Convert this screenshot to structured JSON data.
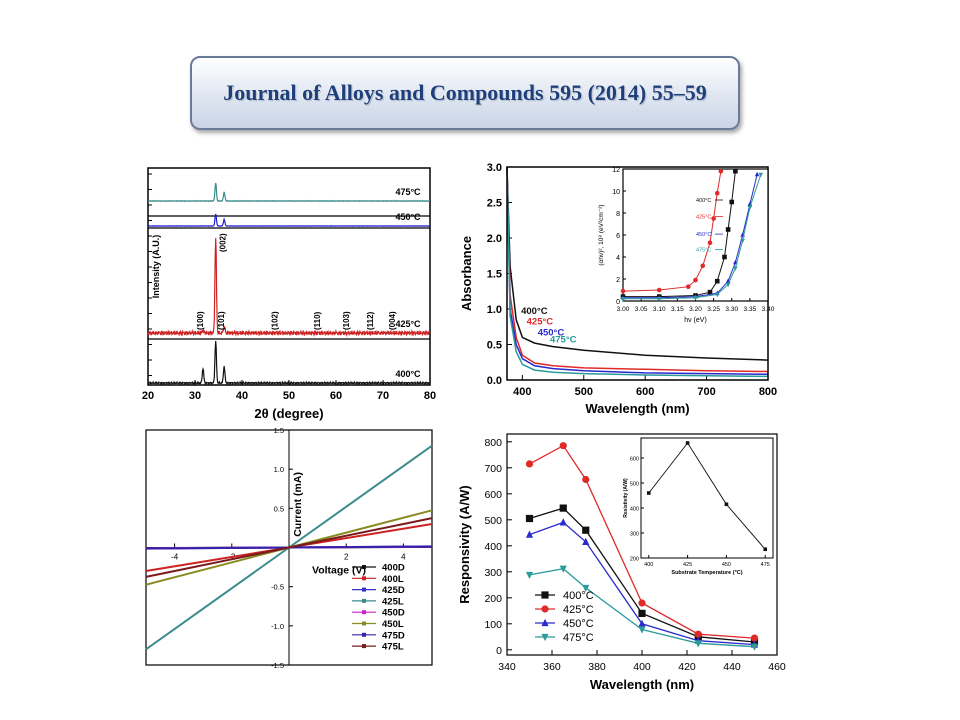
{
  "header": {
    "title": "Journal of Alloys and Compounds 595 (2014) 55–59"
  },
  "chart_data": [
    {
      "id": "xrd",
      "type": "line",
      "xlabel": "2θ (degree)",
      "ylabel": "Intensity (A.U.)",
      "xlim": [
        20,
        80
      ],
      "xticks": [
        20,
        30,
        40,
        50,
        60,
        70,
        80
      ],
      "peak_labels": [
        {
          "x": 31.7,
          "label": "(100)"
        },
        {
          "x": 36.2,
          "label": "(101)"
        },
        {
          "x": 47.5,
          "label": "(102)"
        },
        {
          "x": 56.6,
          "label": "(110)"
        },
        {
          "x": 62.8,
          "label": "(103)"
        },
        {
          "x": 67.9,
          "label": "(112)"
        },
        {
          "x": 72.5,
          "label": "(004)"
        }
      ],
      "main_peak_label": {
        "x": 34.4,
        "label": "(002)"
      },
      "series": [
        {
          "name": "475°C",
          "color": "#3d8c8c",
          "peaks": [
            [
              34.4,
              1.0
            ],
            [
              36.2,
              0.5
            ]
          ]
        },
        {
          "name": "450°C",
          "color": "#2020d0",
          "peaks": [
            [
              34.4,
              1.0
            ],
            [
              36.2,
              0.55
            ]
          ]
        },
        {
          "name": "425°C",
          "color": "#cc2222",
          "peaks": [
            [
              31.7,
              0.03
            ],
            [
              34.4,
              1.0
            ],
            [
              36.2,
              0.07
            ]
          ]
        },
        {
          "name": "400°C",
          "color": "#111111",
          "peaks": [
            [
              31.7,
              0.35
            ],
            [
              34.4,
              1.0
            ],
            [
              36.2,
              0.4
            ]
          ]
        }
      ]
    },
    {
      "id": "absorbance",
      "type": "line",
      "xlabel": "Wavelength (nm)",
      "ylabel": "Absorbance",
      "xlim": [
        375,
        800
      ],
      "ylim": [
        0,
        3.0
      ],
      "xticks": [
        400,
        500,
        600,
        700,
        800
      ],
      "yticks": [
        0.0,
        0.5,
        1.0,
        1.5,
        2.0,
        2.5,
        3.0
      ],
      "series": [
        {
          "name": "400°C",
          "color": "#111111",
          "x": [
            375,
            380,
            390,
            400,
            420,
            450,
            500,
            600,
            700,
            800
          ],
          "y": [
            3.0,
            1.6,
            0.85,
            0.6,
            0.52,
            0.47,
            0.42,
            0.35,
            0.31,
            0.28
          ]
        },
        {
          "name": "425°C",
          "color": "#e02a2a",
          "x": [
            375,
            380,
            390,
            400,
            420,
            450,
            500,
            600,
            700,
            800
          ],
          "y": [
            3.0,
            1.2,
            0.6,
            0.35,
            0.24,
            0.2,
            0.17,
            0.15,
            0.13,
            0.12
          ]
        },
        {
          "name": "450°C",
          "color": "#2a2acc",
          "x": [
            375,
            380,
            390,
            400,
            420,
            450,
            500,
            600,
            700,
            800
          ],
          "y": [
            3.0,
            1.0,
            0.5,
            0.3,
            0.2,
            0.16,
            0.13,
            0.1,
            0.09,
            0.08
          ]
        },
        {
          "name": "475°C",
          "color": "#2a9a9a",
          "x": [
            375,
            380,
            390,
            400,
            420,
            450,
            500,
            600,
            700,
            800
          ],
          "y": [
            3.0,
            0.9,
            0.4,
            0.22,
            0.14,
            0.11,
            0.09,
            0.07,
            0.06,
            0.05
          ]
        }
      ],
      "labels": [
        "400°C",
        "425°C",
        "450°C",
        "475°C"
      ],
      "inset": {
        "xlabel": "hν (eV)",
        "ylabel": "(αhν)², 10⁸ (eV²cm⁻²)",
        "xlim": [
          3.0,
          3.4
        ],
        "ylim": [
          0,
          12
        ],
        "xticks": [
          "3.00",
          "3.05",
          "3.10",
          "3.15",
          "3.20",
          "3.25",
          "3.30",
          "3.35",
          "3.40"
        ],
        "yticks": [
          0,
          2,
          4,
          6,
          8,
          10,
          12
        ],
        "series": [
          {
            "name": "400°C",
            "color": "#111111",
            "marker": "square",
            "x": [
              3.0,
              3.1,
              3.2,
              3.24,
              3.26,
              3.28,
              3.29,
              3.3,
              3.31
            ],
            "y": [
              0.4,
              0.4,
              0.5,
              0.8,
              1.8,
              4.0,
              6.5,
              9.0,
              11.8
            ]
          },
          {
            "name": "425°C",
            "color": "#e02a2a",
            "marker": "circle",
            "x": [
              3.0,
              3.1,
              3.18,
              3.2,
              3.22,
              3.24,
              3.25,
              3.26,
              3.27
            ],
            "y": [
              0.9,
              1.0,
              1.3,
              1.9,
              3.2,
              5.3,
              7.5,
              9.8,
              11.8
            ]
          },
          {
            "name": "450°C",
            "color": "#2a2acc",
            "marker": "triangle",
            "x": [
              3.0,
              3.1,
              3.2,
              3.26,
              3.29,
              3.31,
              3.33,
              3.35,
              3.37
            ],
            "y": [
              0.3,
              0.3,
              0.4,
              0.7,
              1.8,
              3.5,
              6.0,
              8.8,
              11.5
            ]
          },
          {
            "name": "475°C",
            "color": "#2a9a9a",
            "marker": "triangle-down",
            "x": [
              3.0,
              3.1,
              3.2,
              3.26,
              3.29,
              3.31,
              3.33,
              3.35,
              3.38
            ],
            "y": [
              0.2,
              0.2,
              0.3,
              0.6,
              1.5,
              3.0,
              5.5,
              8.5,
              11.5
            ]
          }
        ],
        "labels": [
          "400°C",
          "425°C",
          "450°C",
          "475°C"
        ]
      }
    },
    {
      "id": "iv",
      "type": "line",
      "xlabel": "Voltage (V)",
      "ylabel": "Current (mA)",
      "xlim": [
        -5,
        5
      ],
      "ylim": [
        -1.5,
        1.5
      ],
      "xticks": [
        -4,
        -2,
        2,
        4
      ],
      "yticks": [
        "-1.5",
        "-1.0",
        "-0.5",
        "0.5",
        "1.0",
        "1.5"
      ],
      "legend_position": "bottom-right",
      "series": [
        {
          "name": "400D",
          "color": "#111111",
          "slope": 0.0015
        },
        {
          "name": "400L",
          "color": "#cc2222",
          "slope": 0.06
        },
        {
          "name": "425D",
          "color": "#3333cc",
          "slope": 0.003
        },
        {
          "name": "425L",
          "color": "#3d8c8c",
          "slope": 0.26
        },
        {
          "name": "450D",
          "color": "#cc22cc",
          "slope": 0.002
        },
        {
          "name": "450L",
          "color": "#8a8a22",
          "slope": 0.095
        },
        {
          "name": "475D",
          "color": "#3322aa",
          "slope": 0.0025
        },
        {
          "name": "475L",
          "color": "#7a1a1a",
          "slope": 0.075
        }
      ]
    },
    {
      "id": "responsivity",
      "type": "line",
      "xlabel": "Wavelength (nm)",
      "ylabel": "Responsivity (A/W)",
      "xlim": [
        340,
        460
      ],
      "ylim": [
        -20,
        830
      ],
      "xticks": [
        340,
        360,
        380,
        400,
        420,
        440,
        460
      ],
      "yticks": [
        0,
        100,
        200,
        300,
        400,
        500,
        600,
        700,
        800
      ],
      "legend_position": "bottom-left",
      "series": [
        {
          "name": "400°C",
          "color": "#111111",
          "marker": "square",
          "x": [
            350,
            365,
            375,
            400,
            425,
            450
          ],
          "y": [
            505,
            545,
            460,
            140,
            50,
            30
          ]
        },
        {
          "name": "425°C",
          "color": "#e02a2a",
          "marker": "circle",
          "x": [
            350,
            365,
            375,
            400,
            425,
            450
          ],
          "y": [
            715,
            785,
            655,
            180,
            60,
            45
          ]
        },
        {
          "name": "450°C",
          "color": "#2a2acc",
          "marker": "triangle",
          "x": [
            350,
            365,
            375,
            400,
            425,
            450
          ],
          "y": [
            443,
            490,
            415,
            100,
            35,
            20
          ]
        },
        {
          "name": "475°C",
          "color": "#2a9a9a",
          "marker": "triangle-down",
          "x": [
            350,
            365,
            375,
            400,
            425,
            450
          ],
          "y": [
            288,
            312,
            238,
            78,
            25,
            12
          ]
        }
      ],
      "inset": {
        "xlabel": "Substrate Temperature (°C)",
        "ylabel": "Resistivity (A/W)",
        "xlim": [
          395,
          480
        ],
        "ylim": [
          200,
          680
        ],
        "xticks": [
          400,
          425,
          450,
          475
        ],
        "yticks": [
          200,
          300,
          400,
          500,
          600
        ],
        "x": [
          400,
          425,
          450,
          475
        ],
        "y": [
          460,
          660,
          415,
          235
        ]
      }
    }
  ]
}
